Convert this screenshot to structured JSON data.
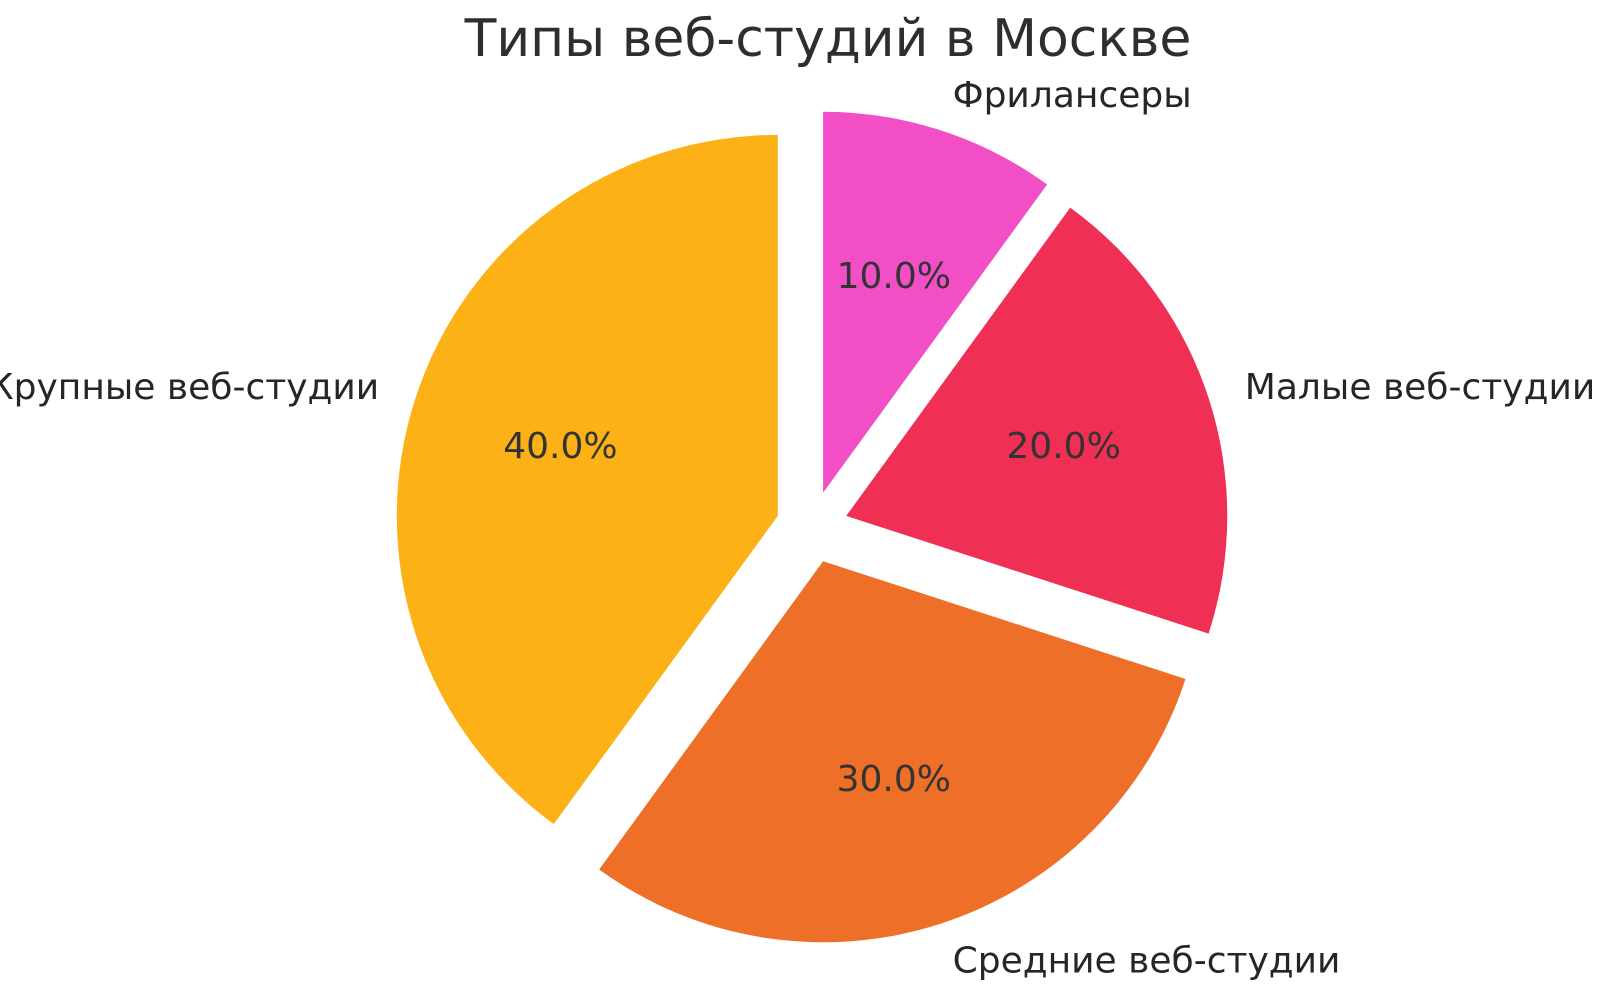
{
  "chart_data": {
    "type": "pie",
    "title": "Типы веб-студий в Москве",
    "categories": [
      "Фрилансеры",
      "Малые веб-студии",
      "Средние веб-студии",
      "Крупные веб-студии"
    ],
    "values": [
      10.0,
      20.0,
      30.0,
      40.0
    ],
    "slices": [
      {
        "label": "Фрилансеры",
        "value": 10.0,
        "pct_label": "10.0%",
        "color": "#F24FC6"
      },
      {
        "label": "Малые веб-студии",
        "value": 20.0,
        "pct_label": "20.0%",
        "color": "#F02F55"
      },
      {
        "label": "Средние веб-студии",
        "value": 30.0,
        "pct_label": "30.0%",
        "color": "#ED6F28"
      },
      {
        "label": "Крупные веб-студии",
        "value": 40.0,
        "pct_label": "40.0%",
        "color": "#FCB216"
      }
    ],
    "start_angle_deg": 90,
    "direction": "clockwise",
    "exploded": true,
    "legend_position": "none",
    "grid": false,
    "background_color": "#FFFFFF",
    "title_color": "#2E2E2E",
    "label_color": "#262626",
    "pct_color": "#333333"
  }
}
